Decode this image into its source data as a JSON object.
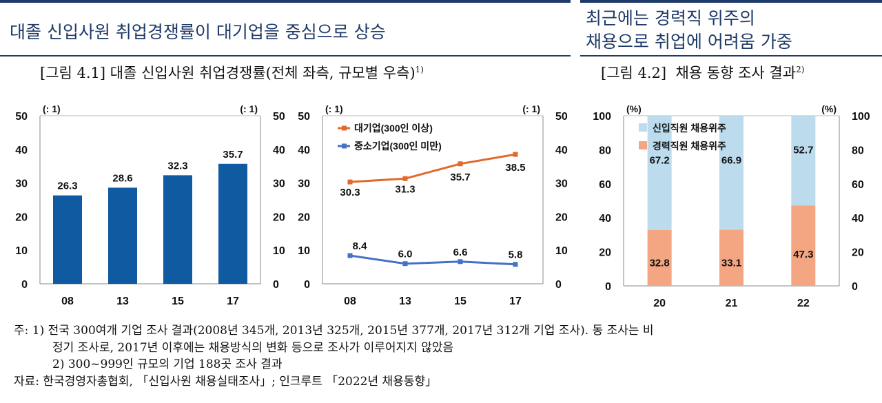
{
  "left_section": {
    "headline": "대졸 신입사원 취업경쟁률이 대기업을 중심으로 상승",
    "figure_label": "[그림 4.1]",
    "figure_title": "대졸 신입사원 취업경쟁률(전체 좌측, 규모별 우측)",
    "figure_sup": "1)"
  },
  "right_section": {
    "headline_line1": "최근에는 경력직 위주의",
    "headline_line2": "채용으로 취업에 어려움 가중",
    "figure_label": "[그림 4.2]",
    "figure_title": "채용 동향 조사 결과",
    "figure_sup": "2)"
  },
  "colors": {
    "accent": "#1f3a68",
    "bar_blue": "#0f5aa0",
    "orange": "#e06a2c",
    "line_blue": "#4472c4",
    "light_blue": "#bcdcee",
    "salmon": "#f4a582"
  },
  "chart_data": [
    {
      "type": "bar",
      "unit_left": "(: 1)",
      "unit_right": "(: 1)",
      "categories": [
        "08",
        "13",
        "15",
        "17"
      ],
      "values": [
        26.3,
        28.6,
        32.3,
        35.7
      ],
      "ylim": [
        0,
        50
      ],
      "yticks": [
        0,
        10,
        20,
        30,
        40,
        50
      ],
      "grid": false
    },
    {
      "type": "line",
      "unit_left": "(: 1)",
      "unit_right": "(: 1)",
      "categories": [
        "08",
        "13",
        "15",
        "17"
      ],
      "ylim": [
        0,
        50
      ],
      "yticks": [
        0,
        10,
        20,
        30,
        40,
        50
      ],
      "legend_position": "top-left",
      "series": [
        {
          "name": "대기업(300인 이상)",
          "values": [
            30.3,
            31.3,
            35.7,
            38.5
          ],
          "color": "#e06a2c"
        },
        {
          "name": "중소기업(300인 미만)",
          "values": [
            8.4,
            6.0,
            6.6,
            5.8
          ],
          "color": "#4472c4"
        }
      ]
    },
    {
      "type": "bar",
      "stacked": true,
      "unit_left": "(%)",
      "unit_right": "(%)",
      "categories": [
        "20",
        "21",
        "22"
      ],
      "ylim": [
        0,
        100
      ],
      "yticks": [
        0,
        20,
        40,
        60,
        80,
        100
      ],
      "legend_position": "top-left",
      "series": [
        {
          "name": "경력직원 채용위주",
          "values": [
            32.8,
            33.1,
            47.3
          ],
          "color": "#f4a582"
        },
        {
          "name": "신입직원 채용위주",
          "values": [
            67.2,
            66.9,
            52.7
          ],
          "color": "#bcdcee"
        }
      ]
    }
  ],
  "notes": {
    "line1": "주: 1) 전국 300여개 기업 조사 결과(2008년 345개, 2013년 325개, 2015년 377개, 2017년 312개 기업 조사). 동 조사는 비",
    "line2": "정기 조사로, 2017년 이후에는 채용방식의 변화 등으로 조사가 이루어지지 않았음",
    "line3": "2) 300~999인 규모의 기업 188곳 조사 결과",
    "line4": "자료: 한국경영자총협회, 「신입사원 채용실태조사」; 인크루트 「2022년 채용동향」"
  }
}
